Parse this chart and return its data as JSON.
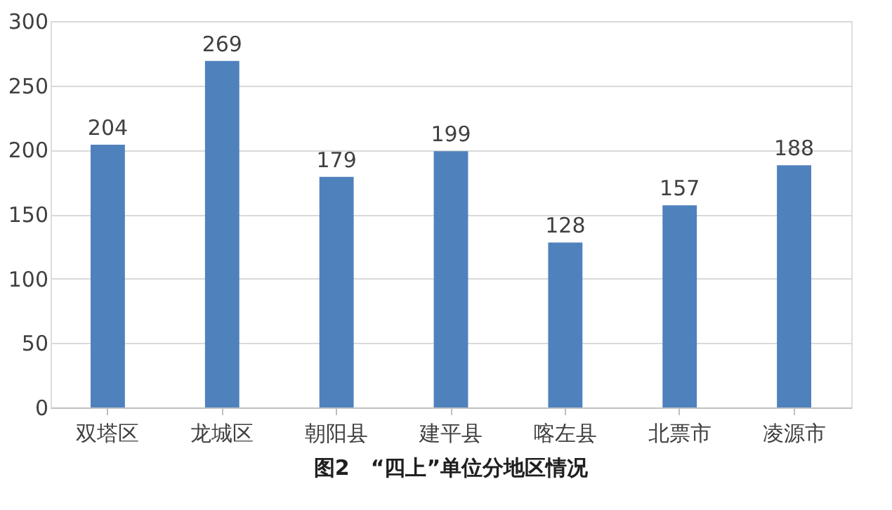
{
  "chart_data": {
    "type": "bar",
    "title": "图2　“四上”单位分地区情况",
    "categories": [
      "双塔区",
      "龙城区",
      "朝阳县",
      "建平县",
      "喀左县",
      "北票市",
      "凌源市"
    ],
    "values": [
      204,
      269,
      179,
      199,
      128,
      157,
      188
    ],
    "color": "#4f81bd",
    "ylim": [
      0,
      300
    ],
    "yticks": [
      0,
      50,
      100,
      150,
      200,
      250,
      300
    ],
    "grid": "y",
    "data_labels": true
  }
}
